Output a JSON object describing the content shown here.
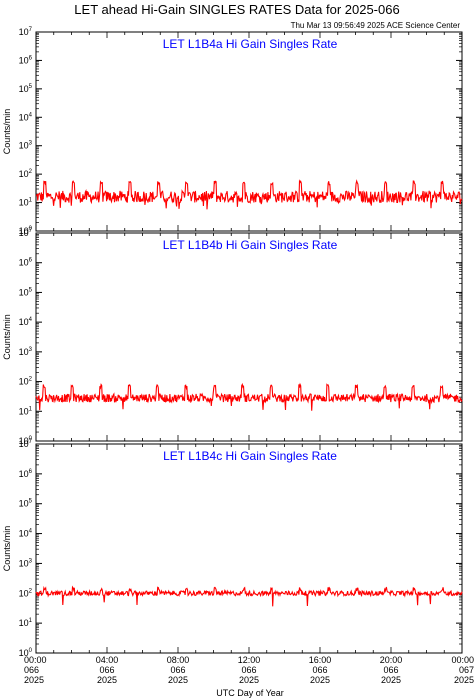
{
  "title": "LET ahead Hi-Gain SINGLES RATES Data for 2025-066",
  "timestamp": "Thu Mar 13 09:56:49 2025 ACE Science Center",
  "colors": {
    "trace": "#ff0000",
    "panel_title": "#0000ff",
    "axis": "#000000"
  },
  "chart_data": {
    "type": "line",
    "xlabel": "UTC Day of Year",
    "x_range_hours": [
      0,
      24
    ],
    "x_ticks": [
      {
        "hour": 0,
        "time": "00:00",
        "doy": "066",
        "year": "2025"
      },
      {
        "hour": 4,
        "time": "04:00",
        "doy": "066",
        "year": "2025"
      },
      {
        "hour": 8,
        "time": "08:00",
        "doy": "066",
        "year": "2025"
      },
      {
        "hour": 12,
        "time": "12:00",
        "doy": "066",
        "year": "2025"
      },
      {
        "hour": 16,
        "time": "16:00",
        "doy": "066",
        "year": "2025"
      },
      {
        "hour": 20,
        "time": "20:00",
        "doy": "066",
        "year": "2025"
      },
      {
        "hour": 24,
        "time": "00:00",
        "doy": "067",
        "year": "2025"
      }
    ],
    "y_scale": "log",
    "y_range": [
      1,
      10000000
    ],
    "y_tick_exponents": [
      0,
      1,
      2,
      3,
      4,
      5,
      6,
      7
    ],
    "panels": [
      {
        "title": "LET L1B4a Hi Gain Singles Rate",
        "ylabel": "Counts/min",
        "base_value": 16,
        "noise_factor": 1.35,
        "spike_value": 50,
        "spike_period_hours": 1.6,
        "spike_first_hour": 0.5
      },
      {
        "title": "LET L1B4b Hi Gain Singles Rate",
        "ylabel": "Counts/min",
        "base_value": 28,
        "noise_factor": 1.22,
        "spike_value": 70,
        "spike_period_hours": 1.6,
        "spike_first_hour": 0.45
      },
      {
        "title": "LET L1B4c Hi Gain Singles Rate",
        "ylabel": "Counts/min",
        "base_value": 100,
        "noise_factor": 1.12,
        "spike_value": 140,
        "spike_period_hours": 1.6,
        "spike_first_hour": 0.5
      }
    ]
  }
}
